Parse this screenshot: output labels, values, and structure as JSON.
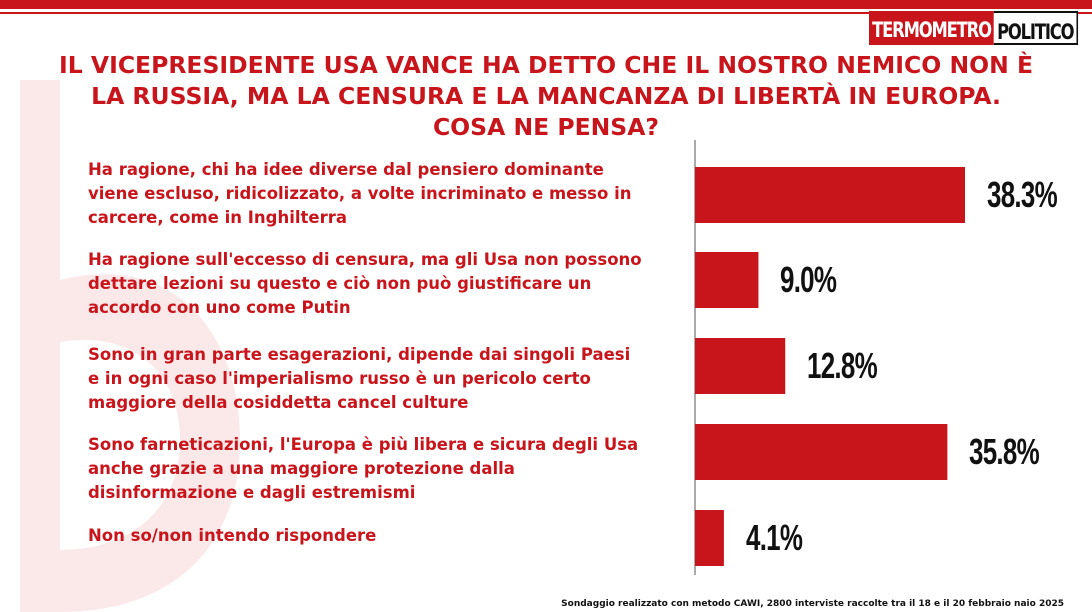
{
  "header": {
    "logo_part1": "TERMOMETRO",
    "logo_part2": "POLITICO",
    "title_line1": "IL VICEPRESIDENTE USA VANCE HA DETTO CHE IL NOSTRO NEMICO NON È",
    "title_line2": "LA RUSSIA, MA LA CENSURA E LA MANCANZA DI LIBERTÀ IN EUROPA.",
    "title_line3": "COSA NE PENSA?"
  },
  "chart_data": {
    "type": "bar",
    "orientation": "horizontal",
    "categories": [
      "Ha ragione, chi ha idee diverse dal pensiero dominante viene escluso, ridicolizzato, a volte incriminato e messo in carcere, come in Inghilterra",
      "Ha ragione sull'eccesso di censura, ma gli Usa non possono dettare lezioni su questo e ciò non può giustificare un accordo con uno come Putin",
      "Sono in gran parte esagerazioni, dipende dai singoli Paesi e in ogni caso l'imperialismo russo è un pericolo certo maggiore della cosiddetta cancel culture",
      "Sono farneticazioni, l'Europa è più libera e sicura degli Usa anche grazie a una maggiore protezione dalla disinformazione e dagli estremismi",
      "Non so/non intendo rispondere"
    ],
    "category_lines": [
      [
        "Ha ragione, chi ha idee diverse dal pensiero dominante",
        "viene escluso, ridicolizzato, a volte incriminato e messo in",
        "carcere, come in Inghilterra"
      ],
      [
        "Ha ragione sull'eccesso di censura, ma gli Usa non possono",
        "dettare lezioni su questo e ciò non può giustificare un",
        "accordo con uno come Putin"
      ],
      [
        "Sono in gran parte esagerazioni, dipende dai singoli Paesi",
        "e in ogni caso l'imperialismo russo è un pericolo certo",
        "maggiore della cosiddetta cancel culture"
      ],
      [
        "Sono farneticazioni, l'Europa è più libera e sicura degli Usa",
        "anche grazie a una maggiore protezione dalla",
        "disinformazione e dagli estremismi"
      ],
      [
        "Non so/non intendo rispondere"
      ]
    ],
    "values": [
      38.3,
      9.0,
      12.8,
      35.8,
      4.1
    ],
    "value_labels": [
      "38.3%",
      "9.0%",
      "12.8%",
      "35.8%",
      "4.1%"
    ],
    "xlim": [
      0,
      40
    ],
    "bar_color": "#c8151b",
    "label_color": "#c8151b",
    "grid": false,
    "legend": "none"
  },
  "footnote": "Sondaggio realizzato con metodo CAWI, 2800 interviste raccolte tra il 18 e il 20 febbraio naio 2025"
}
